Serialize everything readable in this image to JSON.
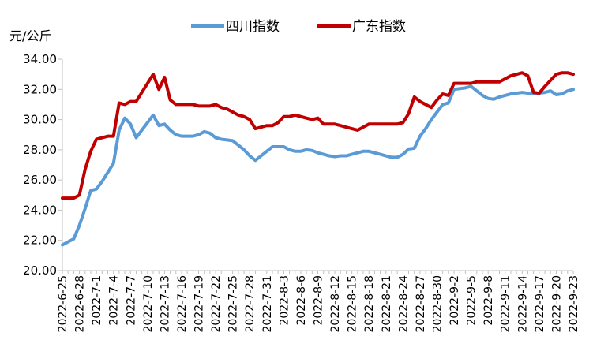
{
  "chart_data": {
    "type": "line",
    "unit_label": "元/公斤",
    "ylim": [
      20,
      34
    ],
    "yticks": [
      "20.00",
      "22.00",
      "24.00",
      "26.00",
      "28.00",
      "30.00",
      "32.00",
      "34.00"
    ],
    "legend_position": "top-center",
    "grid": false,
    "x": [
      "2022-6-25",
      "2022-6-26",
      "2022-6-27",
      "2022-6-28",
      "2022-6-29",
      "2022-6-30",
      "2022-7-1",
      "2022-7-2",
      "2022-7-3",
      "2022-7-4",
      "2022-7-5",
      "2022-7-6",
      "2022-7-7",
      "2022-7-8",
      "2022-7-9",
      "2022-7-10",
      "2022-7-11",
      "2022-7-12",
      "2022-7-13",
      "2022-7-14",
      "2022-7-15",
      "2022-7-16",
      "2022-7-17",
      "2022-7-18",
      "2022-7-19",
      "2022-7-20",
      "2022-7-21",
      "2022-7-22",
      "2022-7-23",
      "2022-7-24",
      "2022-7-25",
      "2022-7-26",
      "2022-7-27",
      "2022-7-28",
      "2022-7-29",
      "2022-7-30",
      "2022-7-31",
      "2022-8-1",
      "2022-8-2",
      "2022-8-3",
      "2022-8-4",
      "2022-8-5",
      "2022-8-6",
      "2022-8-7",
      "2022-8-8",
      "2022-8-9",
      "2022-8-10",
      "2022-8-11",
      "2022-8-12",
      "2022-8-13",
      "2022-8-14",
      "2022-8-15",
      "2022-8-16",
      "2022-8-17",
      "2022-8-18",
      "2022-8-19",
      "2022-8-20",
      "2022-8-21",
      "2022-8-22",
      "2022-8-23",
      "2022-8-24",
      "2022-8-25",
      "2022-8-26",
      "2022-8-27",
      "2022-8-28",
      "2022-8-29",
      "2022-8-30",
      "2022-8-31",
      "2022-9-1",
      "2022-9-2",
      "2022-9-3",
      "2022-9-4",
      "2022-9-5",
      "2022-9-6",
      "2022-9-7",
      "2022-9-8",
      "2022-9-9",
      "2022-9-10",
      "2022-9-11",
      "2022-9-12",
      "2022-9-13",
      "2022-9-14",
      "2022-9-15",
      "2022-9-16",
      "2022-9-17",
      "2022-9-18",
      "2022-9-19",
      "2022-9-20",
      "2022-9-21",
      "2022-9-22",
      "2022-9-23"
    ],
    "xtick_labels": [
      "2022-6-25",
      "2022-6-28",
      "2022-7-1",
      "2022-7-4",
      "2022-7-7",
      "2022-7-10",
      "2022-7-13",
      "2022-7-16",
      "2022-7-19",
      "2022-7-22",
      "2022-7-25",
      "2022-7-28",
      "2022-7-31",
      "2022-8-3",
      "2022-8-6",
      "2022-8-9",
      "2022-8-12",
      "2022-8-15",
      "2022-8-18",
      "2022-8-21",
      "2022-8-24",
      "2022-8-27",
      "2022-8-30",
      "2022-9-2",
      "2022-9-5",
      "2022-9-8",
      "2022-9-11",
      "2022-9-14",
      "2022-9-17",
      "2022-9-20",
      "2022-9-23"
    ],
    "series": [
      {
        "name": "四川指数",
        "color": "#5B9BD5",
        "values": [
          21.7,
          21.9,
          22.1,
          23.0,
          24.1,
          25.3,
          25.4,
          25.9,
          26.5,
          27.1,
          29.3,
          30.1,
          29.7,
          28.8,
          29.3,
          29.8,
          30.3,
          29.6,
          29.7,
          29.3,
          29.0,
          28.9,
          28.9,
          28.9,
          29.0,
          29.2,
          29.1,
          28.8,
          28.7,
          28.65,
          28.6,
          28.3,
          28.0,
          27.6,
          27.3,
          27.6,
          27.9,
          28.2,
          28.2,
          28.2,
          28.0,
          27.9,
          27.9,
          28.0,
          27.95,
          27.8,
          27.7,
          27.6,
          27.55,
          27.6,
          27.6,
          27.7,
          27.8,
          27.9,
          27.9,
          27.8,
          27.7,
          27.6,
          27.5,
          27.5,
          27.7,
          28.05,
          28.1,
          28.9,
          29.4,
          30.0,
          30.5,
          31.0,
          31.1,
          32.0,
          32.05,
          32.1,
          32.2,
          31.9,
          31.6,
          31.4,
          31.35,
          31.5,
          31.6,
          31.7,
          31.75,
          31.8,
          31.75,
          31.7,
          31.75,
          31.8,
          31.9,
          31.65,
          31.7,
          31.9,
          32.0
        ]
      },
      {
        "name": "广东指数",
        "color": "#C00000",
        "values": [
          24.8,
          24.8,
          24.8,
          25.0,
          26.7,
          27.9,
          28.7,
          28.8,
          28.9,
          28.9,
          31.1,
          31.0,
          31.2,
          31.2,
          31.8,
          32.4,
          33.0,
          32.0,
          32.8,
          31.3,
          31.0,
          31.0,
          31.0,
          31.0,
          30.9,
          30.9,
          30.9,
          31.0,
          30.8,
          30.7,
          30.5,
          30.3,
          30.2,
          30.0,
          29.4,
          29.5,
          29.6,
          29.6,
          29.8,
          30.2,
          30.2,
          30.3,
          30.2,
          30.1,
          30.0,
          30.1,
          29.7,
          29.7,
          29.7,
          29.6,
          29.5,
          29.4,
          29.3,
          29.5,
          29.7,
          29.7,
          29.7,
          29.7,
          29.7,
          29.7,
          29.8,
          30.4,
          31.5,
          31.2,
          31.0,
          30.8,
          31.3,
          31.7,
          31.6,
          32.4,
          32.4,
          32.4,
          32.4,
          32.5,
          32.5,
          32.5,
          32.5,
          32.5,
          32.7,
          32.9,
          33.0,
          33.1,
          32.9,
          31.8,
          31.75,
          32.2,
          32.6,
          33.0,
          33.1,
          33.1,
          33.0
        ]
      }
    ]
  }
}
